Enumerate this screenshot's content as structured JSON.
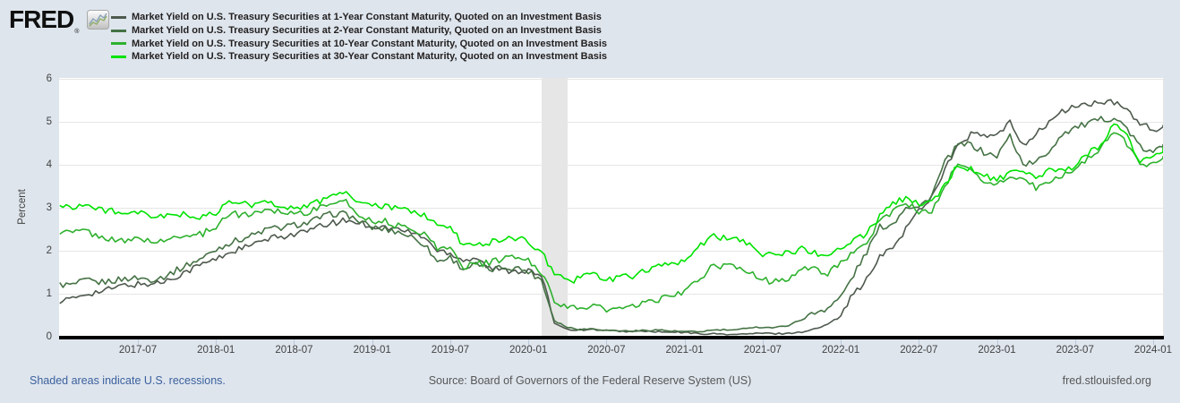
{
  "header": {
    "logo_text": "FRED",
    "registered_mark": "®",
    "logo_icon": "fred-graph-icon"
  },
  "footer": {
    "recession_note": "Shaded areas indicate U.S. recessions.",
    "source": "Source: Board of Governors of the Federal Reserve System (US)",
    "site": "fred.stlouisfed.org"
  },
  "colors": {
    "page_background": "#dee5ed",
    "plot_background": "#ffffff",
    "gridline": "#e6e6e6",
    "recession_band": "#e6e6e6",
    "axis": "#000000",
    "tick": "#b9c8d9",
    "axis_text": "#424242",
    "link_blue": "#3c619e",
    "footer_gray": "#575757"
  },
  "chart_data": {
    "type": "line",
    "title": "",
    "xlabel": "",
    "ylabel": "Percent",
    "ylim": [
      0,
      6
    ],
    "yticks": [
      0,
      1,
      2,
      3,
      4,
      5,
      6
    ],
    "grid": "horizontal",
    "legend_position": "top-left",
    "x_unit": "months since 2017-01 (index 0 = 2017-01, monthly values through 2024-02)",
    "xtick_labels": [
      "2017-07",
      "2018-01",
      "2018-07",
      "2019-01",
      "2019-07",
      "2020-01",
      "2020-07",
      "2021-01",
      "2021-07",
      "2022-01",
      "2022-07",
      "2023-01",
      "2023-07",
      "2024-01"
    ],
    "xtick_month_indices": [
      6,
      12,
      18,
      24,
      30,
      36,
      42,
      48,
      54,
      60,
      66,
      72,
      78,
      84
    ],
    "recession_band": {
      "label_from": "2020-02",
      "label_to": "2020-04",
      "start_month_index": 37,
      "end_month_index": 39
    },
    "series": [
      {
        "name": "Market Yield on U.S. Treasury Securities at 1-Year Constant Maturity, Quoted on an Investment Basis",
        "color": "#4e594e",
        "values": [
          0.85,
          0.87,
          1.01,
          1.04,
          1.12,
          1.2,
          1.22,
          1.23,
          1.28,
          1.42,
          1.56,
          1.7,
          1.8,
          1.96,
          2.06,
          2.15,
          2.27,
          2.33,
          2.39,
          2.45,
          2.56,
          2.65,
          2.7,
          2.66,
          2.57,
          2.54,
          2.5,
          2.42,
          2.32,
          2.0,
          1.96,
          1.78,
          1.85,
          1.59,
          1.55,
          1.54,
          1.53,
          1.41,
          0.33,
          0.17,
          0.16,
          0.17,
          0.14,
          0.13,
          0.12,
          0.13,
          0.11,
          0.1,
          0.1,
          0.07,
          0.07,
          0.06,
          0.05,
          0.07,
          0.08,
          0.07,
          0.08,
          0.11,
          0.18,
          0.28,
          0.55,
          1.01,
          1.32,
          1.85,
          2.08,
          2.51,
          2.95,
          3.25,
          3.92,
          4.42,
          4.72,
          4.66,
          4.68,
          4.97,
          4.48,
          4.7,
          5.0,
          5.22,
          5.37,
          5.4,
          5.45,
          5.44,
          5.28,
          4.98,
          4.79,
          4.87
        ]
      },
      {
        "name": "Market Yield on U.S. Treasury Securities at 2-Year Constant Maturity, Quoted on an Investment Basis",
        "color": "#457245",
        "values": [
          1.21,
          1.2,
          1.31,
          1.26,
          1.3,
          1.35,
          1.37,
          1.33,
          1.4,
          1.55,
          1.7,
          1.84,
          2.03,
          2.18,
          2.28,
          2.38,
          2.51,
          2.53,
          2.6,
          2.64,
          2.77,
          2.86,
          2.86,
          2.68,
          2.54,
          2.5,
          2.44,
          2.33,
          2.16,
          1.75,
          1.85,
          1.58,
          1.68,
          1.55,
          1.61,
          1.61,
          1.52,
          1.33,
          0.38,
          0.22,
          0.17,
          0.19,
          0.15,
          0.14,
          0.13,
          0.15,
          0.16,
          0.13,
          0.12,
          0.11,
          0.15,
          0.16,
          0.15,
          0.22,
          0.22,
          0.21,
          0.27,
          0.4,
          0.55,
          0.68,
          0.92,
          1.44,
          1.98,
          2.55,
          2.62,
          3.05,
          3.0,
          3.3,
          4.05,
          4.45,
          4.48,
          4.28,
          4.2,
          4.68,
          4.02,
          4.05,
          4.32,
          4.72,
          4.87,
          4.95,
          5.05,
          5.1,
          4.85,
          4.4,
          4.27,
          4.52
        ]
      },
      {
        "name": "Market Yield on U.S. Treasury Securities at 10-Year Constant Maturity, Quoted on an Investment Basis",
        "color": "#2db12d",
        "values": [
          2.45,
          2.42,
          2.48,
          2.3,
          2.3,
          2.19,
          2.32,
          2.21,
          2.2,
          2.36,
          2.35,
          2.4,
          2.58,
          2.86,
          2.84,
          2.87,
          2.98,
          2.91,
          2.89,
          2.89,
          3.0,
          3.15,
          3.12,
          2.83,
          2.71,
          2.68,
          2.57,
          2.53,
          2.4,
          2.07,
          2.06,
          1.63,
          1.7,
          1.71,
          1.81,
          1.86,
          1.76,
          1.5,
          0.87,
          0.66,
          0.67,
          0.73,
          0.62,
          0.65,
          0.68,
          0.79,
          0.87,
          0.93,
          1.08,
          1.26,
          1.61,
          1.64,
          1.62,
          1.52,
          1.32,
          1.28,
          1.37,
          1.58,
          1.56,
          1.47,
          1.76,
          1.93,
          2.13,
          2.75,
          2.9,
          3.14,
          2.9,
          2.9,
          3.52,
          3.98,
          3.89,
          3.62,
          3.53,
          3.75,
          3.66,
          3.46,
          3.57,
          3.75,
          3.9,
          4.17,
          4.38,
          4.8,
          4.5,
          3.96,
          4.06,
          4.25
        ]
      },
      {
        "name": "Market Yield on U.S. Treasury Securities at 30-Year Constant Maturity, Quoted on an Investment Basis",
        "color": "#00e300",
        "values": [
          3.04,
          3.03,
          3.08,
          2.94,
          2.96,
          2.8,
          2.88,
          2.8,
          2.78,
          2.88,
          2.8,
          2.77,
          2.88,
          3.13,
          3.09,
          3.07,
          3.13,
          3.05,
          3.01,
          3.04,
          3.15,
          3.34,
          3.36,
          3.1,
          3.04,
          3.02,
          2.98,
          2.94,
          2.82,
          2.57,
          2.57,
          2.12,
          2.16,
          2.19,
          2.28,
          2.3,
          2.22,
          1.97,
          1.46,
          1.27,
          1.38,
          1.49,
          1.31,
          1.36,
          1.42,
          1.57,
          1.62,
          1.67,
          1.82,
          2.04,
          2.34,
          2.3,
          2.32,
          2.16,
          1.94,
          1.92,
          1.94,
          2.06,
          1.94,
          1.85,
          2.1,
          2.25,
          2.41,
          2.81,
          3.07,
          3.25,
          3.1,
          3.13,
          3.55,
          3.98,
          3.92,
          3.74,
          3.66,
          3.8,
          3.8,
          3.68,
          3.86,
          3.87,
          3.95,
          4.28,
          4.47,
          4.95,
          4.65,
          4.1,
          4.21,
          4.38
        ]
      }
    ]
  }
}
